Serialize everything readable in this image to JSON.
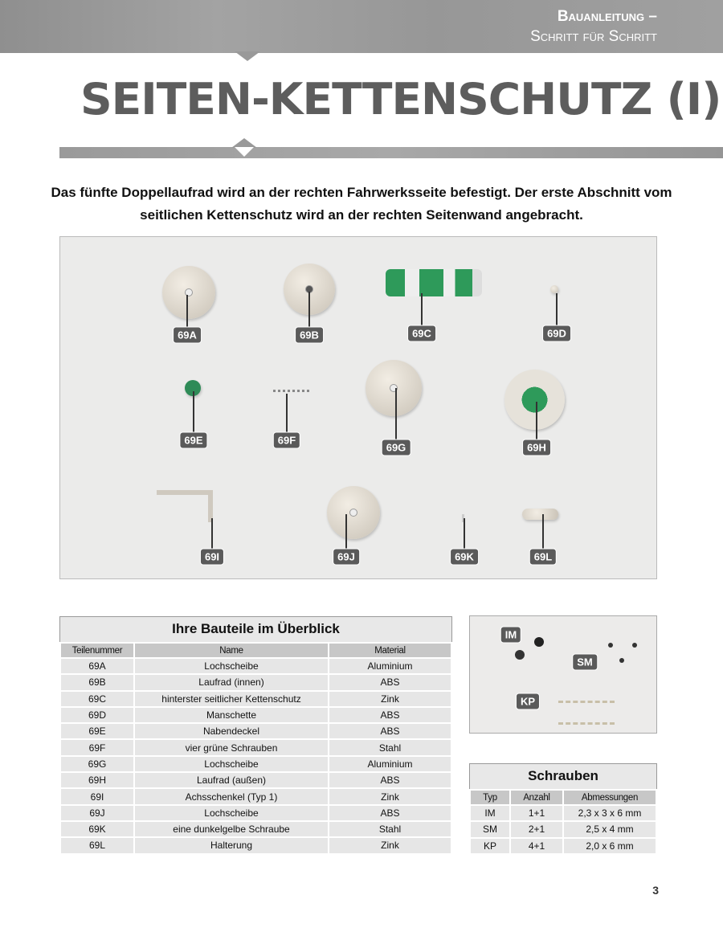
{
  "header": {
    "series_line1": "Bauanleitung –",
    "series_line2": "Schritt für Schritt"
  },
  "title": "SEITEN-KETTENSCHUTZ (I)",
  "intro": "Das fünfte Doppellaufrad wird an der rechten Fahrwerksseite befestigt. Der erste Abschnitt vom seitlichen Kettenschutz wird an der rechten Seitenwand angebracht.",
  "photo_labels": [
    "69A",
    "69B",
    "69C",
    "69D",
    "69E",
    "69F",
    "69G",
    "69H",
    "69I",
    "69J",
    "69K",
    "69L"
  ],
  "parts_table": {
    "title": "Ihre Bauteile im Überblick",
    "headers": [
      "Teilenummer",
      "Name",
      "Material"
    ],
    "rows": [
      [
        "69A",
        "Lochscheibe",
        "Aluminium"
      ],
      [
        "69B",
        "Laufrad (innen)",
        "ABS"
      ],
      [
        "69C",
        "hinterster seitlicher Kettenschutz",
        "Zink"
      ],
      [
        "69D",
        "Manschette",
        "ABS"
      ],
      [
        "69E",
        "Nabendeckel",
        "ABS"
      ],
      [
        "69F",
        "vier grüne Schrauben",
        "Stahl"
      ],
      [
        "69G",
        "Lochscheibe",
        "Aluminium"
      ],
      [
        "69H",
        "Laufrad (außen)",
        "ABS"
      ],
      [
        "69I",
        "Achsschenkel (Typ 1)",
        "Zink"
      ],
      [
        "69J",
        "Lochscheibe",
        "ABS"
      ],
      [
        "69K",
        "eine dunkelgelbe Schraube",
        "Stahl"
      ],
      [
        "69L",
        "Halterung",
        "Zink"
      ]
    ]
  },
  "screw_labels": [
    "IM",
    "SM",
    "KP"
  ],
  "screws_table": {
    "title": "Schrauben",
    "headers": [
      "Typ",
      "Anzahl",
      "Abmessungen"
    ],
    "rows": [
      [
        "IM",
        "1+1",
        "2,3 x 3 x 6 mm"
      ],
      [
        "SM",
        "2+1",
        "2,5 x 4 mm"
      ],
      [
        "KP",
        "4+1",
        "2,0 x 6 mm"
      ]
    ]
  },
  "page_number": "3",
  "colors": {
    "accent_green": "#2e9a5a",
    "header_gray": "#9a9a9a",
    "title_gray": "#5d5d5d"
  }
}
